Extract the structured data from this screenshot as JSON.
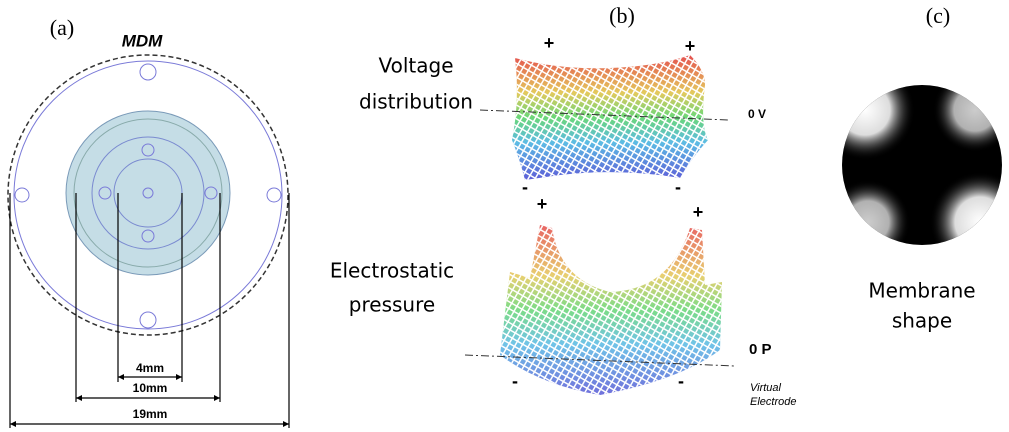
{
  "panels": {
    "a": {
      "label": "(a)",
      "title": "MDM",
      "dimensions": [
        "4mm",
        "10mm",
        "19mm"
      ]
    },
    "b": {
      "label": "(b)",
      "voltage": {
        "label": [
          "Voltage",
          "distribution"
        ],
        "zero": "0 V",
        "signs": [
          "+",
          "+",
          "-",
          "-"
        ]
      },
      "pressure": {
        "label": [
          "Electrostatic",
          "pressure"
        ],
        "zero": "0 P",
        "note": [
          "Virtual",
          "Electrode"
        ],
        "signs": [
          "+",
          "+",
          "-",
          "-"
        ]
      }
    },
    "c": {
      "label": "(c)",
      "label_text": [
        "Membrane",
        "shape"
      ]
    }
  }
}
